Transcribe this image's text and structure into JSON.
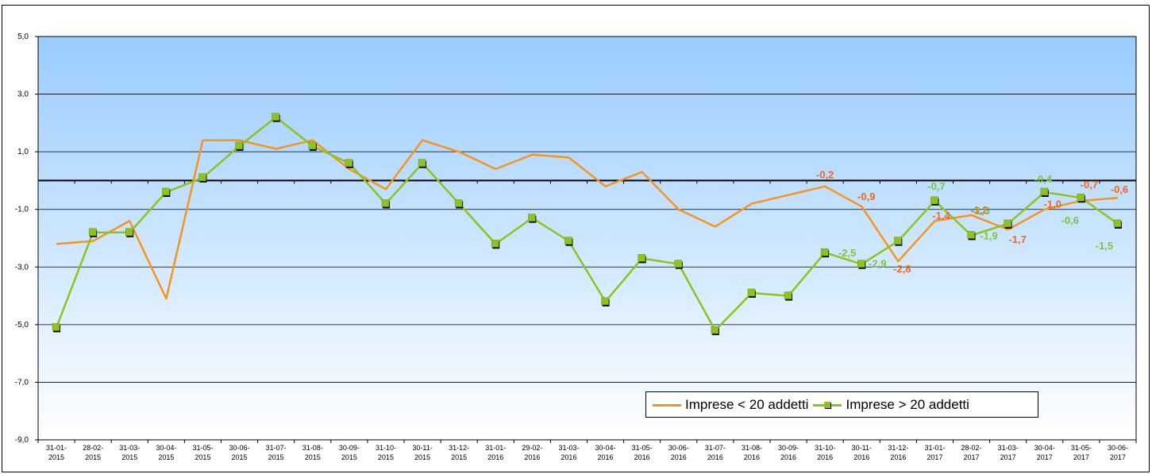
{
  "colors": {
    "series1": "#F7941D",
    "series2": "#8DC21F",
    "label1": "#F26522",
    "label2": "#7CC242",
    "bg_top": "#99CCFF",
    "bg_bottom": "#FFFFFF"
  },
  "legend": {
    "series1_label": "Imprese < 20 addetti",
    "series2_label": "Imprese > 20 addetti"
  },
  "chart_data": {
    "type": "line",
    "title": "",
    "xlabel": "",
    "ylabel": "",
    "ylim": [
      -9,
      5
    ],
    "y_ticks": [
      "5,0",
      "3,0",
      "1,0",
      "-1,0",
      "-3,0",
      "-5,0",
      "-7,0",
      "-9,0"
    ],
    "grid": true,
    "legend_position": "bottom-right",
    "categories": [
      "31-01-2015",
      "28-02-2015",
      "31-03-2015",
      "30-04-2015",
      "31-05-2015",
      "30-06-2015",
      "31-07-2015",
      "31-08-2015",
      "30-09-2015",
      "31-10-2015",
      "30-11-2015",
      "31-12-2015",
      "31-01-2016",
      "29-02-2016",
      "31-03-2016",
      "30-04-2016",
      "31-05-2016",
      "30-06-2016",
      "31-07-2016",
      "31-08-2016",
      "30-09-2016",
      "31-10-2016",
      "30-11-2016",
      "31-12-2016",
      "31-01-2017",
      "28-02-2017",
      "31-03-2017",
      "30-04-2017",
      "31-05-2017",
      "30-06-2017"
    ],
    "category_lines": [
      [
        "31-01-",
        "2015"
      ],
      [
        "28-02-",
        "2015"
      ],
      [
        "31-03-",
        "2015"
      ],
      [
        "30-04-",
        "2015"
      ],
      [
        "31-05-",
        "2015"
      ],
      [
        "30-06-",
        "2015"
      ],
      [
        "31-07-",
        "2015"
      ],
      [
        "31-08-",
        "2015"
      ],
      [
        "30-09-",
        "2015"
      ],
      [
        "31-10-",
        "2015"
      ],
      [
        "30-11-",
        "2015"
      ],
      [
        "31-12-",
        "2015"
      ],
      [
        "31-01-",
        "2016"
      ],
      [
        "29-02-",
        "2016"
      ],
      [
        "31-03-",
        "2016"
      ],
      [
        "30-04-",
        "2016"
      ],
      [
        "31-05-",
        "2016"
      ],
      [
        "30-06-",
        "2016"
      ],
      [
        "31-07-",
        "2016"
      ],
      [
        "31-08-",
        "2016"
      ],
      [
        "30-09-",
        "2016"
      ],
      [
        "31-10-",
        "2016"
      ],
      [
        "30-11-",
        "2016"
      ],
      [
        "31-12-",
        "2016"
      ],
      [
        "31-01-",
        "2017"
      ],
      [
        "28-02-",
        "2017"
      ],
      [
        "31-03-",
        "2017"
      ],
      [
        "30-04-",
        "2017"
      ],
      [
        "31-05-",
        "2017"
      ],
      [
        "30-06-",
        "2017"
      ]
    ],
    "series": [
      {
        "name": "Imprese < 20 addetti",
        "values": [
          -2.2,
          -2.1,
          -1.4,
          -4.1,
          1.4,
          1.4,
          1.1,
          1.4,
          0.4,
          -0.3,
          1.4,
          1.0,
          0.4,
          0.9,
          0.8,
          -0.2,
          0.3,
          -1.0,
          -1.6,
          -0.8,
          -0.5,
          -0.2,
          -0.9,
          -2.8,
          -1.4,
          -1.2,
          -1.7,
          -1.0,
          -0.7,
          -0.6
        ],
        "data_labels": {
          "21": "-0,2",
          "22": "-0,9",
          "23": "-2,8",
          "24": "-1,4",
          "25": "-1,2",
          "26": "-1,7",
          "27": "-1,0",
          "28": "-0,7",
          "29": "-0,6"
        }
      },
      {
        "name": "Imprese > 20 addetti",
        "values": [
          -5.1,
          -1.8,
          -1.8,
          -0.4,
          0.1,
          1.2,
          2.2,
          1.2,
          0.6,
          -0.8,
          0.6,
          -0.8,
          -2.2,
          -1.3,
          -2.1,
          -4.2,
          -2.7,
          -2.9,
          -5.2,
          -3.9,
          -4.0,
          -2.5,
          -2.9,
          -2.1,
          -0.7,
          -1.9,
          -1.5,
          -0.4,
          -0.6,
          -1.5
        ],
        "data_labels": {
          "21": "-2,5",
          "22": "-2,9",
          "24": "-0,7",
          "25": "-1,9",
          "26": "-1,5",
          "27": "-0,4",
          "28": "-0,6",
          "29": "-1,5"
        }
      }
    ]
  }
}
